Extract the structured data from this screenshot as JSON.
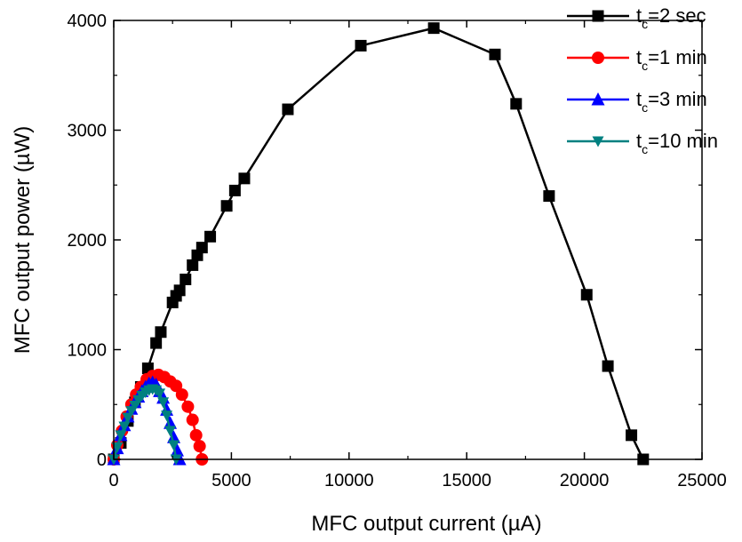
{
  "chart_data": {
    "type": "line",
    "xlabel": "MFC output current (µA)",
    "ylabel": "MFC output power (µW)",
    "xlim": [
      0,
      25000
    ],
    "ylim": [
      0,
      4000
    ],
    "xticks": [
      0,
      5000,
      10000,
      15000,
      20000,
      25000
    ],
    "yticks": [
      0,
      1000,
      2000,
      3000,
      4000
    ],
    "xtick_labels": [
      "0",
      "5000",
      "10000",
      "15000",
      "20000",
      "25000"
    ],
    "ytick_labels": [
      "0",
      "1000",
      "2000",
      "3000",
      "4000"
    ],
    "grid": false,
    "legend_position": "top-right",
    "series": [
      {
        "name_main": "t",
        "name_sub": "c",
        "name_rest": "=2 sec",
        "color": "#000000",
        "marker": "square",
        "points": [
          [
            0,
            0
          ],
          [
            300,
            150
          ],
          [
            600,
            350
          ],
          [
            900,
            520
          ],
          [
            1150,
            660
          ],
          [
            1450,
            830
          ],
          [
            1800,
            1060
          ],
          [
            2000,
            1160
          ],
          [
            2500,
            1430
          ],
          [
            2650,
            1490
          ],
          [
            2800,
            1540
          ],
          [
            3050,
            1640
          ],
          [
            3350,
            1770
          ],
          [
            3550,
            1860
          ],
          [
            3750,
            1930
          ],
          [
            4100,
            2030
          ],
          [
            4800,
            2310
          ],
          [
            5150,
            2450
          ],
          [
            5550,
            2560
          ],
          [
            7400,
            3190
          ],
          [
            10500,
            3770
          ],
          [
            13600,
            3930
          ],
          [
            16200,
            3690
          ],
          [
            17100,
            3240
          ],
          [
            18500,
            2400
          ],
          [
            20100,
            1500
          ],
          [
            21000,
            850
          ],
          [
            22000,
            220
          ],
          [
            22500,
            0
          ]
        ]
      },
      {
        "name_main": "t",
        "name_sub": "c",
        "name_rest": "=1 min",
        "color": "#ff0000",
        "marker": "circle",
        "points": [
          [
            0,
            0
          ],
          [
            150,
            130
          ],
          [
            350,
            260
          ],
          [
            550,
            390
          ],
          [
            750,
            500
          ],
          [
            950,
            590
          ],
          [
            1150,
            660
          ],
          [
            1400,
            730
          ],
          [
            1650,
            760
          ],
          [
            1900,
            770
          ],
          [
            2150,
            750
          ],
          [
            2400,
            710
          ],
          [
            2650,
            670
          ],
          [
            2900,
            590
          ],
          [
            3150,
            480
          ],
          [
            3350,
            360
          ],
          [
            3500,
            220
          ],
          [
            3650,
            120
          ],
          [
            3750,
            0
          ]
        ]
      },
      {
        "name_main": "t",
        "name_sub": "c",
        "name_rest": "=3 min",
        "color": "#0000ff",
        "marker": "triangle-up",
        "points": [
          [
            0,
            0
          ],
          [
            150,
            100
          ],
          [
            300,
            220
          ],
          [
            450,
            310
          ],
          [
            600,
            390
          ],
          [
            750,
            460
          ],
          [
            900,
            520
          ],
          [
            1050,
            570
          ],
          [
            1200,
            620
          ],
          [
            1350,
            660
          ],
          [
            1500,
            690
          ],
          [
            1650,
            700
          ],
          [
            1800,
            680
          ],
          [
            1950,
            620
          ],
          [
            2100,
            560
          ],
          [
            2250,
            450
          ],
          [
            2400,
            330
          ],
          [
            2550,
            200
          ],
          [
            2700,
            80
          ],
          [
            2800,
            0
          ]
        ]
      },
      {
        "name_main": "t",
        "name_sub": "c",
        "name_rest": "=10 min",
        "color": "#008080",
        "marker": "triangle-down",
        "points": [
          [
            0,
            0
          ],
          [
            150,
            110
          ],
          [
            300,
            220
          ],
          [
            450,
            300
          ],
          [
            600,
            380
          ],
          [
            750,
            440
          ],
          [
            900,
            490
          ],
          [
            1050,
            540
          ],
          [
            1200,
            580
          ],
          [
            1350,
            610
          ],
          [
            1500,
            630
          ],
          [
            1650,
            640
          ],
          [
            1800,
            630
          ],
          [
            1950,
            600
          ],
          [
            2100,
            520
          ],
          [
            2250,
            400
          ],
          [
            2400,
            260
          ],
          [
            2550,
            130
          ],
          [
            2650,
            0
          ]
        ]
      }
    ]
  }
}
